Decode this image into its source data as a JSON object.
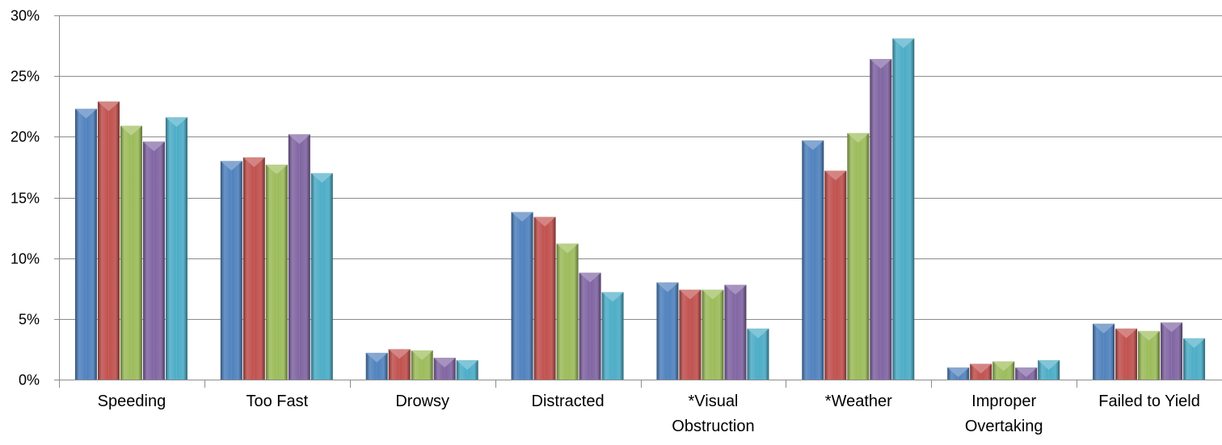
{
  "chart_data": {
    "type": "bar",
    "categories": [
      [
        "Speeding"
      ],
      [
        "Too Fast"
      ],
      [
        "Drowsy"
      ],
      [
        "Distracted"
      ],
      [
        "*Visual",
        "Obstruction"
      ],
      [
        "*Weather"
      ],
      [
        "Improper",
        "Overtaking"
      ],
      [
        "Failed to Yield"
      ]
    ],
    "yticks": [
      "0%",
      "5%",
      "10%",
      "15%",
      "20%",
      "25%",
      "30%"
    ],
    "ylim": [
      0,
      30
    ],
    "grid": true,
    "series": [
      {
        "color": "#4f81bd",
        "values": [
          22.3,
          18.0,
          2.2,
          13.8,
          8.0,
          19.7,
          1.0,
          4.6
        ]
      },
      {
        "color": "#c0504d",
        "values": [
          22.9,
          18.3,
          2.5,
          13.4,
          7.4,
          17.2,
          1.3,
          4.2
        ]
      },
      {
        "color": "#9bbb59",
        "values": [
          20.9,
          17.7,
          2.4,
          11.2,
          7.4,
          20.3,
          1.5,
          4.0
        ]
      },
      {
        "color": "#8064a2",
        "values": [
          19.6,
          20.2,
          1.8,
          8.8,
          7.8,
          26.4,
          1.0,
          4.7
        ]
      },
      {
        "color": "#4bacc6",
        "values": [
          21.6,
          17.0,
          1.6,
          7.2,
          4.2,
          28.1,
          1.6,
          3.4
        ]
      }
    ],
    "legend": "none"
  }
}
